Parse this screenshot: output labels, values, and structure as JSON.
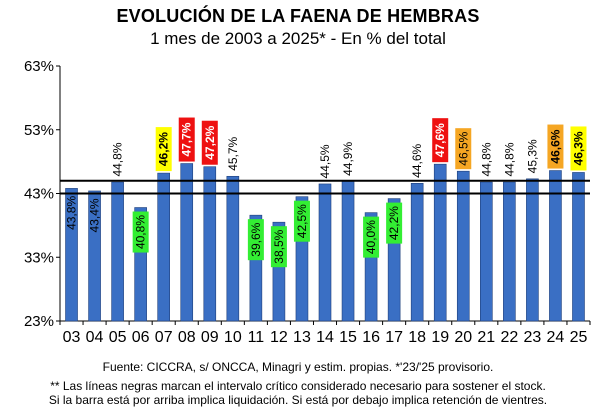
{
  "title": "EVOLUCIÓN DE LA FAENA DE HEMBRAS",
  "subtitle": "1 mes de 2003 a 2025* - En % del total",
  "source": "Fuente: CICCRA, s/ ONCCA, Minagri y estim. propias. *'23/'25  provisorio.",
  "note_line1": "** Las líneas negras marcan el intervalo crítico considerado necesario para sostener el stock.",
  "note_line2": "Si la barra está por arriba implica liquidación. Si está por debajo implica retención de vientres.",
  "colors": {
    "bar": "#3a6fc4",
    "bar_edge": "#1f3f7a",
    "label_green": "#33ee33",
    "label_yellow": "#ffff00",
    "label_red": "#ee1111",
    "label_orange": "#f5a623",
    "threshold_line": "#000000"
  },
  "chart_data": {
    "type": "bar",
    "title": "EVOLUCIÓN DE LA FAENA DE HEMBRAS",
    "subtitle": "1 mes de 2003 a 2025* - En % del total",
    "categories": [
      "03",
      "04",
      "05",
      "06",
      "07",
      "08",
      "09",
      "10",
      "11",
      "12",
      "13",
      "14",
      "15",
      "16",
      "17",
      "18",
      "19",
      "20",
      "21",
      "22",
      "23",
      "24",
      "25"
    ],
    "values": [
      43.8,
      43.4,
      44.8,
      40.8,
      46.2,
      47.7,
      47.2,
      45.7,
      39.6,
      38.5,
      42.5,
      44.5,
      44.9,
      40.0,
      42.2,
      44.6,
      47.6,
      46.5,
      44.8,
      44.8,
      45.3,
      46.6,
      46.3
    ],
    "data_labels": [
      "43,8%",
      "43,4%",
      "44,8%",
      "40,8%",
      "46,2%",
      "47,7%",
      "47,2%",
      "45,7%",
      "39,6%",
      "38,5%",
      "42,5%",
      "44,5%",
      "44,9%",
      "40,0%",
      "42,2%",
      "44,6%",
      "47,6%",
      "46,5%",
      "44,8%",
      "44,8%",
      "45,3%",
      "46,6%",
      "46,3%"
    ],
    "label_style": [
      "none",
      "none",
      "none",
      "green",
      "yellow",
      "red",
      "red",
      "none",
      "green",
      "green",
      "green",
      "none",
      "none",
      "green",
      "green",
      "none",
      "red",
      "orange",
      "none",
      "none",
      "none",
      "orange",
      "yellow"
    ],
    "label_inside": [
      true,
      true,
      false,
      true,
      false,
      false,
      false,
      false,
      true,
      true,
      true,
      false,
      false,
      true,
      true,
      false,
      false,
      false,
      false,
      false,
      false,
      false,
      false
    ],
    "label_bold": [
      false,
      false,
      false,
      false,
      true,
      true,
      true,
      false,
      false,
      false,
      false,
      false,
      false,
      false,
      false,
      false,
      true,
      false,
      false,
      false,
      false,
      true,
      true
    ],
    "ylim": [
      23,
      63
    ],
    "yticks": [
      23,
      33,
      43,
      53,
      63
    ],
    "ytick_labels": [
      "23%",
      "33%",
      "43%",
      "53%",
      "63%"
    ],
    "threshold_lines": [
      43,
      45
    ],
    "grid": false,
    "xlabel": "",
    "ylabel": ""
  }
}
